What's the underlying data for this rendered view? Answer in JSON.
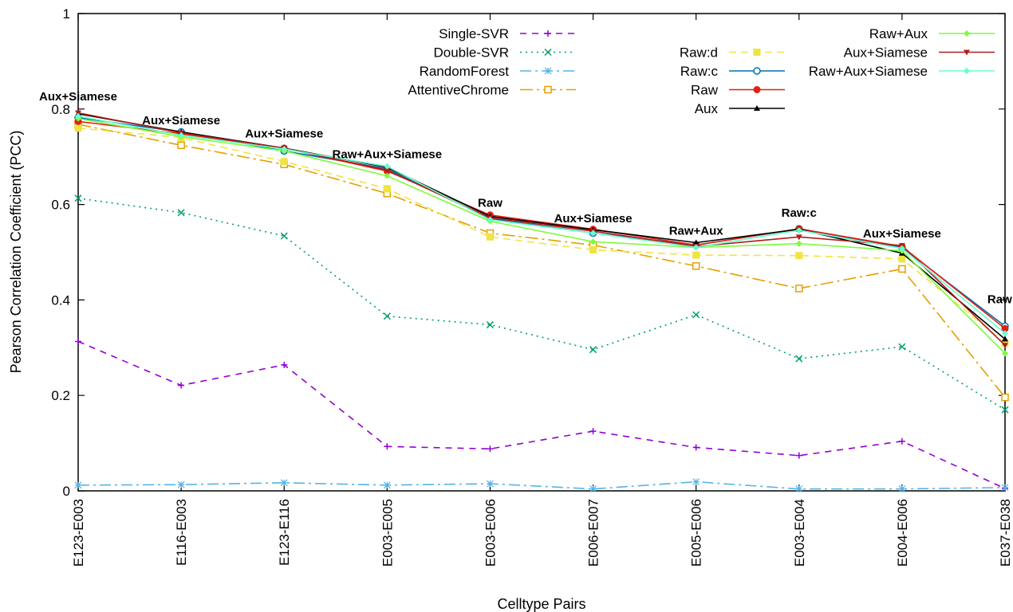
{
  "chart_data": {
    "type": "line",
    "title": "",
    "xlabel": "Celltype Pairs",
    "ylabel": "Pearson Correlation Coefficient (PCC)",
    "ylim": [
      0,
      1
    ],
    "yticks": [
      0,
      0.2,
      0.4,
      0.6,
      0.8,
      1
    ],
    "ytick_labels": [
      "0",
      "0.2",
      "0.4",
      "0.6",
      "0.8",
      "1"
    ],
    "grid": false,
    "legend_position": "top-right",
    "categories": [
      "E123-E003",
      "E116-E003",
      "E123-E116",
      "E003-E005",
      "E003-E006",
      "E006-E007",
      "E005-E006",
      "E003-E004",
      "E004-E006",
      "E037-E038"
    ],
    "series": [
      {
        "name": "Single-SVR",
        "color": "#9400d3",
        "dash": "8,7",
        "marker": "plus",
        "values": [
          0.313,
          0.221,
          0.264,
          0.093,
          0.088,
          0.125,
          0.091,
          0.074,
          0.104,
          0.005
        ]
      },
      {
        "name": "Double-SVR",
        "color": "#009e73",
        "dash": "2,5",
        "marker": "cross",
        "values": [
          0.613,
          0.583,
          0.534,
          0.366,
          0.348,
          0.296,
          0.369,
          0.277,
          0.302,
          0.17
        ]
      },
      {
        "name": "RandomForest",
        "color": "#56b4e9",
        "dash": "14,5,3,5",
        "marker": "star",
        "values": [
          0.012,
          0.013,
          0.017,
          0.012,
          0.015,
          0.004,
          0.019,
          0.004,
          0.004,
          0.007
        ]
      },
      {
        "name": "AttentiveChrome",
        "color": "#e69f00",
        "dash": "16,5,3,5",
        "marker": "square-open",
        "values": [
          0.768,
          0.724,
          0.684,
          0.623,
          0.54,
          0.515,
          0.471,
          0.424,
          0.465,
          0.196
        ]
      },
      {
        "name": "Raw:d",
        "color": "#f0e442",
        "dash": "9,6",
        "marker": "square-filled",
        "values": [
          0.76,
          0.74,
          0.69,
          0.633,
          0.532,
          0.505,
          0.494,
          0.493,
          0.486,
          0.31
        ]
      },
      {
        "name": "Raw:c",
        "color": "#0072b2",
        "dash": "",
        "marker": "circle-open",
        "values": [
          0.782,
          0.752,
          0.712,
          0.675,
          0.57,
          0.54,
          0.515,
          0.549,
          0.51,
          0.345
        ]
      },
      {
        "name": "Raw",
        "color": "#e51e10",
        "dash": "",
        "marker": "circle-filled",
        "values": [
          0.774,
          0.748,
          0.718,
          0.67,
          0.578,
          0.548,
          0.515,
          0.549,
          0.512,
          0.34
        ]
      },
      {
        "name": "Aux",
        "color": "#000000",
        "dash": "",
        "marker": "triangle",
        "values": [
          0.79,
          0.752,
          0.718,
          0.678,
          0.575,
          0.547,
          0.52,
          0.548,
          0.498,
          0.318
        ]
      },
      {
        "name": "Raw+Aux",
        "color": "#7cfc3c",
        "dash": "",
        "marker": "diamond",
        "values": [
          0.78,
          0.742,
          0.712,
          0.66,
          0.565,
          0.522,
          0.51,
          0.518,
          0.503,
          0.288
        ]
      },
      {
        "name": "Aux+Siamese",
        "color": "#b01c1c",
        "dash": "",
        "marker": "triangle-down",
        "values": [
          0.792,
          0.75,
          0.718,
          0.672,
          0.572,
          0.544,
          0.512,
          0.532,
          0.514,
          0.305
        ]
      },
      {
        "name": "Raw+Aux+Siamese",
        "color": "#66ffcc",
        "dash": "",
        "marker": "diamond",
        "values": [
          0.785,
          0.745,
          0.716,
          0.68,
          0.568,
          0.54,
          0.51,
          0.546,
          0.508,
          0.33
        ]
      }
    ],
    "annotations": [
      {
        "text": "Aux+Siamese",
        "category": "E123-E003",
        "y": 0.818
      },
      {
        "text": "Aux+Siamese",
        "category": "E116-E003",
        "y": 0.768
      },
      {
        "text": "Aux+Siamese",
        "category": "E123-E116",
        "y": 0.74
      },
      {
        "text": "Raw+Aux+Siamese",
        "category": "E003-E005",
        "y": 0.697
      },
      {
        "text": "Raw",
        "category": "E003-E006",
        "y": 0.595
      },
      {
        "text": "Aux+Siamese",
        "category": "E006-E007",
        "y": 0.563
      },
      {
        "text": "Raw+Aux",
        "category": "E005-E006",
        "y": 0.537
      },
      {
        "text": "Raw:c",
        "category": "E003-E004",
        "y": 0.574
      },
      {
        "text": "Aux+Siamese",
        "category": "E004-E006",
        "y": 0.531
      },
      {
        "text": "Raw:c",
        "category": "E037-E038",
        "y": 0.393
      }
    ]
  }
}
